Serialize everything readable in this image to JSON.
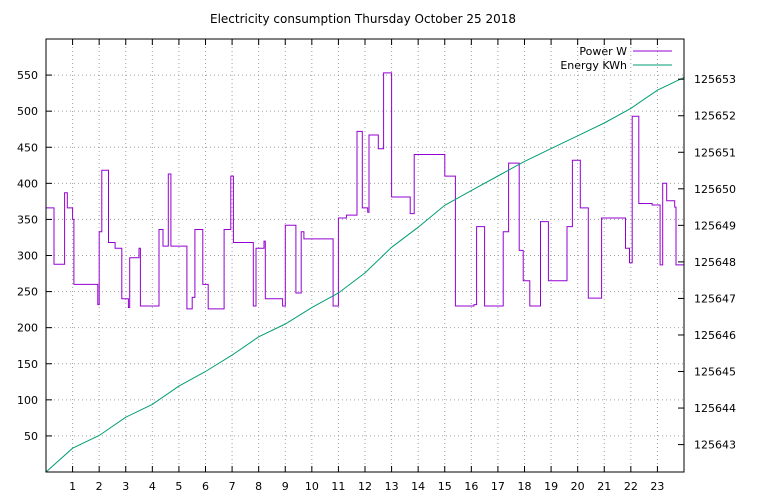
{
  "chart_data": {
    "type": "line",
    "title": "Electricity consumption Thursday October 25 2018",
    "x": {
      "range": [
        0,
        24
      ],
      "ticks": [
        1,
        2,
        3,
        4,
        5,
        6,
        7,
        8,
        9,
        10,
        11,
        12,
        13,
        14,
        15,
        16,
        17,
        18,
        19,
        20,
        21,
        22,
        23
      ]
    },
    "y_left": {
      "range": [
        0,
        600
      ],
      "ticks": [
        50,
        100,
        150,
        200,
        250,
        300,
        350,
        400,
        450,
        500,
        550
      ]
    },
    "y_right": {
      "range": [
        125642.25,
        125654.1
      ],
      "ticks": [
        125643,
        125644,
        125645,
        125646,
        125647,
        125648,
        125649,
        125650,
        125651,
        125652,
        125653
      ]
    },
    "grid": true,
    "legend_position": "top-right",
    "series": [
      {
        "name": "Power W",
        "axis": "left",
        "color": "#9400d3",
        "step": true,
        "points": [
          [
            0.0,
            366
          ],
          [
            0.3,
            288
          ],
          [
            0.7,
            387
          ],
          [
            0.8,
            366
          ],
          [
            1.0,
            350
          ],
          [
            1.05,
            260
          ],
          [
            1.9,
            260
          ],
          [
            1.95,
            232
          ],
          [
            2.0,
            333
          ],
          [
            2.1,
            418
          ],
          [
            2.35,
            318
          ],
          [
            2.6,
            310
          ],
          [
            2.85,
            240
          ],
          [
            3.1,
            228
          ],
          [
            3.15,
            297
          ],
          [
            3.5,
            310
          ],
          [
            3.55,
            230
          ],
          [
            4.2,
            230
          ],
          [
            4.25,
            336
          ],
          [
            4.4,
            313
          ],
          [
            4.6,
            413
          ],
          [
            4.7,
            313
          ],
          [
            5.3,
            226
          ],
          [
            5.5,
            242
          ],
          [
            5.6,
            336
          ],
          [
            5.9,
            260
          ],
          [
            6.1,
            226
          ],
          [
            6.7,
            336
          ],
          [
            6.95,
            410
          ],
          [
            7.05,
            318
          ],
          [
            7.7,
            318
          ],
          [
            7.8,
            230
          ],
          [
            7.9,
            310
          ],
          [
            8.2,
            320
          ],
          [
            8.25,
            240
          ],
          [
            8.8,
            240
          ],
          [
            8.9,
            230
          ],
          [
            9.0,
            342
          ],
          [
            9.4,
            248
          ],
          [
            9.6,
            333
          ],
          [
            9.7,
            323
          ],
          [
            10.8,
            230
          ],
          [
            11.0,
            352
          ],
          [
            11.3,
            356
          ],
          [
            11.7,
            472
          ],
          [
            11.9,
            366
          ],
          [
            12.1,
            360
          ],
          [
            12.15,
            467
          ],
          [
            12.5,
            448
          ],
          [
            12.7,
            553
          ],
          [
            13.0,
            381
          ],
          [
            13.7,
            358
          ],
          [
            13.85,
            440
          ],
          [
            15.0,
            410
          ],
          [
            15.4,
            230
          ],
          [
            16.1,
            232
          ],
          [
            16.2,
            340
          ],
          [
            16.5,
            230
          ],
          [
            16.8,
            230
          ],
          [
            17.2,
            333
          ],
          [
            17.4,
            428
          ],
          [
            17.8,
            307
          ],
          [
            17.95,
            265
          ],
          [
            18.2,
            230
          ],
          [
            18.6,
            347
          ],
          [
            18.9,
            265
          ],
          [
            19.6,
            340
          ],
          [
            19.8,
            432
          ],
          [
            20.1,
            366
          ],
          [
            20.4,
            241
          ],
          [
            20.9,
            352
          ],
          [
            21.8,
            310
          ],
          [
            21.95,
            290
          ],
          [
            22.05,
            493
          ],
          [
            22.3,
            372
          ],
          [
            22.8,
            370
          ],
          [
            23.1,
            287
          ],
          [
            23.2,
            400
          ],
          [
            23.35,
            376
          ],
          [
            23.65,
            367
          ],
          [
            23.7,
            287
          ],
          [
            24.0,
            287
          ]
        ]
      },
      {
        "name": "Energy KWh",
        "axis": "right",
        "color": "#009e73",
        "step": false,
        "points": [
          [
            0.0,
            125642.25
          ],
          [
            1.0,
            125642.9
          ],
          [
            2.0,
            125643.25
          ],
          [
            3.0,
            125643.75
          ],
          [
            4.0,
            125644.1
          ],
          [
            5.0,
            125644.6
          ],
          [
            6.0,
            125645.0
          ],
          [
            7.0,
            125645.45
          ],
          [
            8.0,
            125645.95
          ],
          [
            9.0,
            125646.3
          ],
          [
            10.0,
            125646.75
          ],
          [
            11.0,
            125647.15
          ],
          [
            12.0,
            125647.7
          ],
          [
            13.0,
            125648.4
          ],
          [
            14.0,
            125648.95
          ],
          [
            15.0,
            125649.55
          ],
          [
            16.0,
            125649.95
          ],
          [
            17.0,
            125650.35
          ],
          [
            18.0,
            125650.75
          ],
          [
            19.0,
            125651.1
          ],
          [
            20.0,
            125651.45
          ],
          [
            21.0,
            125651.8
          ],
          [
            22.0,
            125652.2
          ],
          [
            23.0,
            125652.7
          ],
          [
            24.0,
            125653.05
          ]
        ]
      }
    ]
  }
}
